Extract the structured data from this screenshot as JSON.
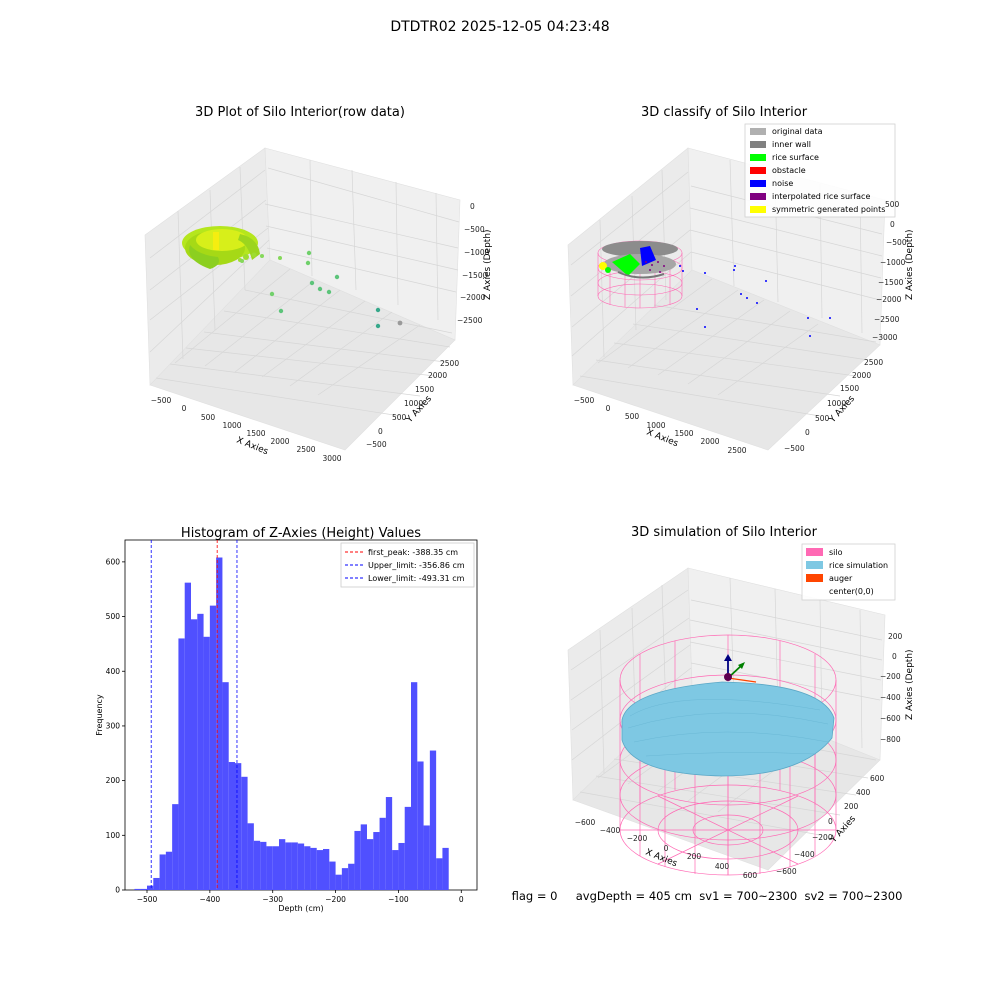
{
  "suptitle": "DTDTR02 2025-12-05 04:23:48",
  "status_text": "flag = 0     avgDepth = 405 cm  sv1 = 700~2300  sv2 = 700~2300",
  "colors": {
    "hist_bar": "#5050ff",
    "first_peak": "#ff0000",
    "limits": "#0000ff",
    "pane": "#f2f2f2",
    "grid": "#d0d0d0",
    "silo": "#ff69b4",
    "rice_sim": "#7ec8e3",
    "auger": "#ff4500",
    "rice_raw": "#a8dc18",
    "original": "#b0b0b0",
    "inner_wall": "#808080",
    "rice_surface": "#00ff00",
    "obstacle": "#ff0000",
    "noise": "#0000ff",
    "interpolated": "#800080",
    "symmetric": "#ffff00"
  },
  "chart_data": [
    {
      "type": "scatter",
      "title": "3D Plot of Silo Interior(row data)",
      "xlabel": "X Axies",
      "ylabel": "Y Axies",
      "zlabel": "Z Axies (Depth)",
      "x_ticks": [
        "−500",
        "0",
        "500",
        "1000",
        "1500",
        "2000",
        "2500",
        "3000"
      ],
      "y_ticks": [
        "−500",
        "0",
        "500",
        "1000",
        "1500",
        "2000",
        "2500"
      ],
      "z_ticks": [
        "0",
        "−500",
        "−1000",
        "−1500",
        "−2000",
        "−2500"
      ],
      "note": "Dense ring of rice points near origin (-600..400 X) with sparse outlier points at larger X/Y"
    },
    {
      "type": "scatter",
      "title": "3D classify of Silo Interior",
      "xlabel": "X Axies",
      "ylabel": "Y Axies",
      "zlabel": "Z Axies (Depth)",
      "x_ticks": [
        "−500",
        "0",
        "500",
        "1000",
        "1500",
        "2000",
        "2500"
      ],
      "y_ticks": [
        "−500",
        "0",
        "500",
        "1000",
        "1500",
        "2000",
        "2500"
      ],
      "z_ticks": [
        "0",
        "−500",
        "−1000",
        "−1500",
        "−2000",
        "−2500",
        "−3000"
      ],
      "z_top_tick": "500",
      "legend": [
        "original data",
        "inner wall",
        "rice surface",
        "obstacle",
        "noise",
        "interpolated rice surface",
        "symmetric generated points"
      ],
      "legend_placement": "top-right"
    },
    {
      "type": "bar",
      "title": "Histogram of Z-Axies (Height) Values",
      "xlabel": "Depth (cm)",
      "ylabel": "Frequency",
      "xlim": [
        -535,
        25
      ],
      "ylim": [
        0,
        640
      ],
      "x_ticks": [
        -500,
        -400,
        -300,
        -200,
        -100,
        0
      ],
      "y_ticks": [
        0,
        100,
        200,
        300,
        400,
        500,
        600
      ],
      "bin_width": 10,
      "bin_start": -520,
      "values": [
        2,
        2,
        8,
        22,
        65,
        70,
        157,
        460,
        562,
        495,
        505,
        463,
        520,
        608,
        380,
        234,
        232,
        207,
        122,
        90,
        88,
        80,
        80,
        93,
        87,
        87,
        85,
        80,
        77,
        73,
        75,
        52,
        28,
        40,
        48,
        108,
        120,
        93,
        106,
        132,
        170,
        73,
        86,
        152,
        380,
        235,
        118,
        255,
        58,
        77
      ],
      "lines": [
        {
          "label": "first_peak: -388.35 cm",
          "x": -388.35,
          "color": "#ff0000"
        },
        {
          "label": "Upper_limit: -356.86 cm",
          "x": -356.86,
          "color": "#0000ff"
        },
        {
          "label": "Lower_limit: -493.31 cm",
          "x": -493.31,
          "color": "#0000ff"
        }
      ],
      "legend_placement": "top-right"
    },
    {
      "type": "scatter",
      "title": "3D simulation of Silo Interior",
      "xlabel": "X Axies",
      "ylabel": "Y Axies",
      "zlabel": "Z Axies (Depth)",
      "x_ticks": [
        "−600",
        "−400",
        "−200",
        "0",
        "200",
        "400",
        "600"
      ],
      "y_ticks": [
        "−600",
        "−400",
        "−200",
        "0",
        "200",
        "400",
        "600"
      ],
      "z_ticks": [
        "200",
        "0",
        "−200",
        "−400",
        "−600",
        "−800"
      ],
      "legend": [
        "silo",
        "rice simulation",
        "auger",
        "center(0,0)"
      ],
      "legend_placement": "top-right"
    }
  ]
}
